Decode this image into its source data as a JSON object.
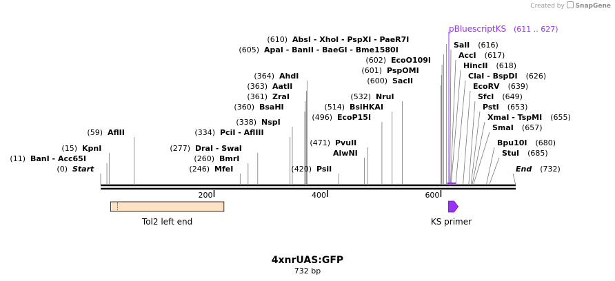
{
  "credit": {
    "prefix": "Created by",
    "brand": "SnapGene"
  },
  "map": {
    "name": "4xnrUAS:GFP",
    "length_label": "732 bp",
    "total_bp": 732,
    "colors": {
      "text": "#000000",
      "tick": "#555555",
      "feature_fill": "#fde3c4",
      "primer": "#9b30ff",
      "label_line": "#777777"
    }
  },
  "sites": [
    {
      "pos": "(0)",
      "label": "Start",
      "italic": true,
      "bp": 0
    },
    {
      "pos": "(11)",
      "label": "BanI  -  Acc65I",
      "bp": 11
    },
    {
      "pos": "(15)",
      "label": "KpnI",
      "bp": 15
    },
    {
      "pos": "(59)",
      "label": "AflII",
      "bp": 59
    },
    {
      "pos": "(246)",
      "label": "MfeI",
      "bp": 246
    },
    {
      "pos": "(260)",
      "label": "BmrI",
      "bp": 260
    },
    {
      "pos": "(277)",
      "label": "DraI  -  SwaI",
      "bp": 277
    },
    {
      "pos": "(334)",
      "label": "PciI  -  AflIII",
      "bp": 334
    },
    {
      "pos": "(338)",
      "label": "NspI",
      "bp": 338
    },
    {
      "pos": "(360)",
      "label": "BsaHI",
      "bp": 360
    },
    {
      "pos": "(361)",
      "label": "ZraI",
      "bp": 361
    },
    {
      "pos": "(363)",
      "label": "AatII",
      "bp": 363
    },
    {
      "pos": "(364)",
      "label": "AhdI",
      "bp": 364
    },
    {
      "pos": "(420)",
      "label": "PsiI",
      "bp": 420
    },
    {
      "pos": "",
      "label": "AlwNI",
      "bp": 465
    },
    {
      "pos": "(471)",
      "label": "PvuII",
      "bp": 471
    },
    {
      "pos": "(496)",
      "label": "EcoP15I",
      "bp": 496
    },
    {
      "pos": "(514)",
      "label": "BsiHKAI",
      "bp": 514
    },
    {
      "pos": "(532)",
      "label": "NruI",
      "bp": 532
    },
    {
      "pos": "(600)",
      "label": "SacII",
      "bp": 600
    },
    {
      "pos": "(601)",
      "label": "PspOMI",
      "bp": 601
    },
    {
      "pos": "(602)",
      "label": "EcoO109I",
      "bp": 602
    },
    {
      "pos": "(605)",
      "label": "ApaI  -  BanII  -  BaeGI  -  Bme1580I",
      "bp": 605
    },
    {
      "pos": "(610)",
      "label": "AbsI  -  XhoI  -  PspXI  -  PaeR7I",
      "bp": 610
    },
    {
      "pos": "(616)",
      "label": "SalI",
      "bp": 616
    },
    {
      "pos": "(617)",
      "label": "AccI",
      "bp": 617
    },
    {
      "pos": "(618)",
      "label": "HincII",
      "bp": 618
    },
    {
      "pos": "(626)",
      "label": "ClaI  -  BspDI",
      "bp": 626
    },
    {
      "pos": "(639)",
      "label": "EcoRV",
      "bp": 639
    },
    {
      "pos": "(649)",
      "label": "SfcI",
      "bp": 649
    },
    {
      "pos": "(653)",
      "label": "PstI",
      "bp": 653
    },
    {
      "pos": "(655)",
      "label": "XmaI  -  TspMI",
      "bp": 655
    },
    {
      "pos": "(657)",
      "label": "SmaI",
      "bp": 657
    },
    {
      "pos": "(680)",
      "label": "Bpu10I",
      "bp": 680
    },
    {
      "pos": "(685)",
      "label": "StuI",
      "bp": 685
    },
    {
      "pos": "(732)",
      "label": "End",
      "italic": true,
      "bp": 732
    }
  ],
  "primer_site": {
    "label": "pBluescriptKS",
    "range": "(611 .. 627)",
    "start": 611,
    "end": 627
  },
  "ruler_ticks": [
    "200",
    "400",
    "600"
  ],
  "features": [
    {
      "name": "Tol2 left end",
      "start": 15,
      "end": 215
    },
    {
      "name": "KS primer",
      "start": 611,
      "end": 627
    }
  ]
}
